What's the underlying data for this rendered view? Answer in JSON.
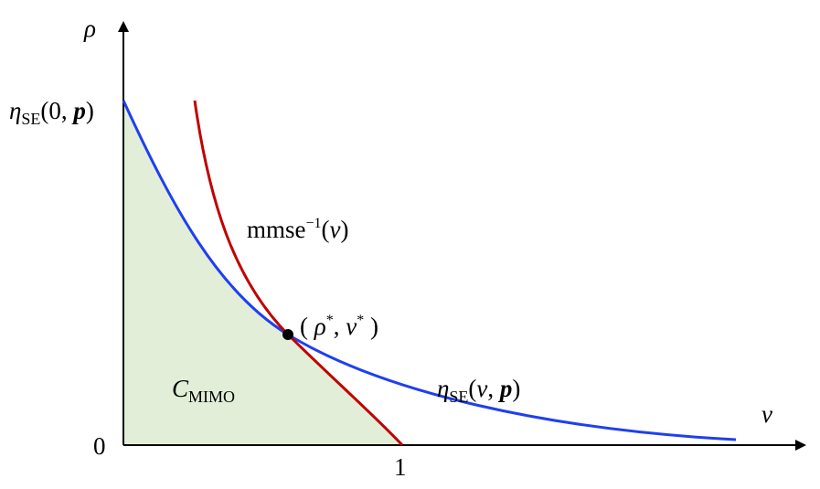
{
  "axes": {
    "y_label": "ρ",
    "x_label": "v",
    "origin": "0",
    "x_mark": "1"
  },
  "labels": {
    "eta_zero": {
      "symbol": "η",
      "subscript": "SE",
      "argument": "(0, ",
      "bold": "p",
      "close": ")"
    },
    "mmse": {
      "text": "mmse",
      "superscript": "−1",
      "open": "(",
      "variable": "v",
      "close": ")"
    },
    "fixed_point": {
      "open": "( ",
      "rho": "ρ",
      "star_1": "*",
      "comma": ", ",
      "v": "v",
      "star_2": "*",
      "close": " )"
    },
    "region": {
      "symbol": "C",
      "subscript": "MIMO"
    },
    "eta_v": {
      "symbol": "η",
      "subscript": "SE",
      "open": "(",
      "variable": "v",
      "comma": ", ",
      "bold": "p",
      "close": ")"
    }
  }
}
